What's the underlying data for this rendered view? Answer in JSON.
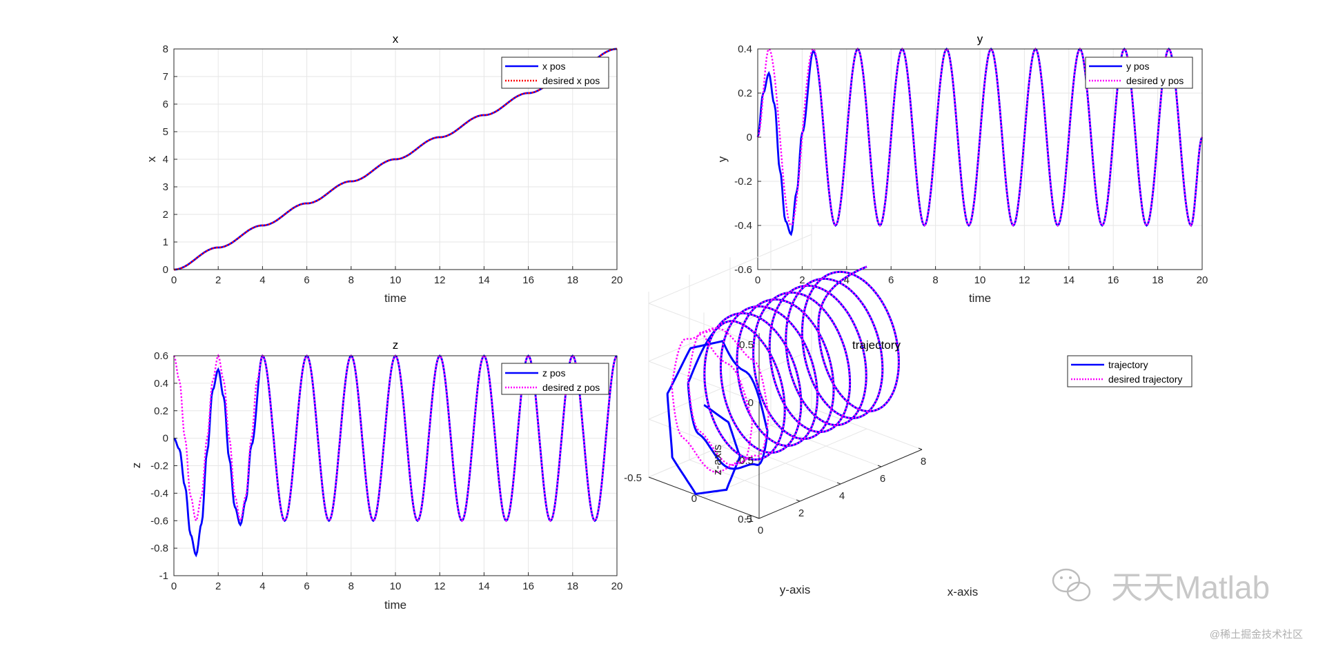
{
  "colors": {
    "actual": "#0000ff",
    "desired_magenta": "#ff00ff",
    "desired_red": "#ff0000",
    "grid": "#e6e6e6",
    "axis": "#262626"
  },
  "watermark": {
    "brand": "天天Matlab",
    "credit": "@稀土掘金技术社区",
    "icon": "wechat-icon"
  },
  "chart_data": [
    {
      "type": "line",
      "title": "x",
      "xlabel": "time",
      "ylabel": "x",
      "xlim": [
        0,
        20
      ],
      "ylim": [
        0,
        8
      ],
      "xticks": [
        "0",
        "2",
        "4",
        "6",
        "8",
        "10",
        "12",
        "14",
        "16",
        "18",
        "20"
      ],
      "yticks": [
        "0",
        "1",
        "2",
        "3",
        "4",
        "5",
        "6",
        "7",
        "8"
      ],
      "grid": true,
      "legend_location": "top-right",
      "series": [
        {
          "name": "x pos",
          "style": "solid",
          "color": "#0000ff",
          "x": [
            0,
            2,
            4,
            6,
            8,
            10,
            12,
            14,
            16,
            18,
            20
          ],
          "y": [
            0,
            0.8,
            1.6,
            2.4,
            3.2,
            4.0,
            4.8,
            5.6,
            6.4,
            7.2,
            8.0
          ]
        },
        {
          "name": "desired x pos",
          "style": "dotted",
          "color": "#ff0000",
          "x": [
            0,
            2,
            4,
            6,
            8,
            10,
            12,
            14,
            16,
            18,
            20
          ],
          "y": [
            0,
            0.8,
            1.6,
            2.4,
            3.2,
            4.0,
            4.8,
            5.6,
            6.4,
            7.2,
            8.0
          ]
        }
      ]
    },
    {
      "type": "line",
      "title": "y",
      "xlabel": "time",
      "ylabel": "y",
      "xlim": [
        0,
        20
      ],
      "ylim": [
        -0.6,
        0.4
      ],
      "xticks": [
        "0",
        "2",
        "4",
        "6",
        "8",
        "10",
        "12",
        "14",
        "16",
        "18",
        "20"
      ],
      "yticks": [
        "-0.6",
        "-0.4",
        "-0.2",
        "0",
        "0.2",
        "0.4"
      ],
      "grid": true,
      "legend_location": "top-right",
      "series": [
        {
          "name": "y pos",
          "style": "solid",
          "color": "#0000ff",
          "x": [
            0,
            0.25,
            0.5,
            0.75,
            1.0,
            1.25,
            1.5,
            1.75,
            2.0,
            2.5,
            3.5,
            4.5,
            5.5,
            6.5,
            7.5,
            8.5,
            9.5,
            10.5,
            11.5,
            12.5,
            13.5,
            14.5,
            15.5,
            16.5,
            17.5,
            18.5,
            19.5,
            20
          ],
          "y": [
            0,
            0.2,
            0.29,
            0.15,
            -0.15,
            -0.38,
            -0.44,
            -0.25,
            0.02,
            0.39,
            -0.4,
            0.4,
            -0.4,
            0.4,
            -0.4,
            0.4,
            -0.4,
            0.4,
            -0.4,
            0.4,
            -0.4,
            0.4,
            -0.4,
            0.4,
            -0.4,
            0.4,
            -0.4,
            0
          ]
        },
        {
          "name": "desired y pos",
          "style": "dotted",
          "color": "#ff00ff",
          "x": [
            0,
            0.5,
            1.5,
            2.5,
            3.5,
            4.5,
            5.5,
            6.5,
            7.5,
            8.5,
            9.5,
            10.5,
            11.5,
            12.5,
            13.5,
            14.5,
            15.5,
            16.5,
            17.5,
            18.5,
            19.5,
            20
          ],
          "y": [
            0,
            0.4,
            -0.4,
            0.4,
            -0.4,
            0.4,
            -0.4,
            0.4,
            -0.4,
            0.4,
            -0.4,
            0.4,
            -0.4,
            0.4,
            -0.4,
            0.4,
            -0.4,
            0.4,
            -0.4,
            0.4,
            -0.4,
            0
          ]
        }
      ]
    },
    {
      "type": "line",
      "title": "z",
      "xlabel": "time",
      "ylabel": "z",
      "xlim": [
        0,
        20
      ],
      "ylim": [
        -1,
        0.6
      ],
      "xticks": [
        "0",
        "2",
        "4",
        "6",
        "8",
        "10",
        "12",
        "14",
        "16",
        "18",
        "20"
      ],
      "yticks": [
        "-1",
        "-0.8",
        "-0.6",
        "-0.4",
        "-0.2",
        "0",
        "0.2",
        "0.4",
        "0.6"
      ],
      "grid": true,
      "legend_location": "top-right",
      "series": [
        {
          "name": "z pos",
          "style": "solid",
          "color": "#0000ff",
          "x": [
            0,
            0.25,
            0.5,
            0.75,
            1.0,
            1.25,
            1.5,
            1.75,
            2.0,
            2.25,
            2.5,
            2.75,
            3.0,
            3.25,
            3.5,
            4.0,
            5.0,
            6.0,
            7.0,
            8.0,
            9.0,
            10.0,
            11.0,
            12.0,
            13.0,
            14.0,
            15.0,
            16.0,
            17.0,
            18.0,
            19.0,
            20.0
          ],
          "y": [
            0,
            -0.08,
            -0.35,
            -0.7,
            -0.85,
            -0.62,
            -0.1,
            0.35,
            0.5,
            0.3,
            -0.15,
            -0.5,
            -0.63,
            -0.45,
            -0.05,
            0.6,
            -0.6,
            0.6,
            -0.6,
            0.6,
            -0.6,
            0.6,
            -0.6,
            0.6,
            -0.6,
            0.6,
            -0.6,
            0.6,
            -0.6,
            0.6,
            -0.6,
            0.6
          ]
        },
        {
          "name": "desired z pos",
          "style": "dotted",
          "color": "#ff00ff",
          "x": [
            0,
            0.25,
            0.5,
            0.75,
            1.0,
            1.25,
            1.5,
            1.75,
            2.0,
            2.25,
            2.5,
            2.75,
            3.0,
            3.25,
            3.5,
            3.75,
            4.0,
            5.0,
            6.0,
            7.0,
            8.0,
            9.0,
            10.0,
            11.0,
            12.0,
            13.0,
            14.0,
            15.0,
            16.0,
            17.0,
            18.0,
            19.0,
            20.0
          ],
          "y": [
            0.6,
            0.42,
            0.0,
            -0.42,
            -0.6,
            -0.42,
            0.0,
            0.42,
            0.6,
            0.42,
            0.0,
            -0.42,
            -0.6,
            -0.42,
            0.0,
            0.42,
            0.6,
            -0.6,
            0.6,
            -0.6,
            0.6,
            -0.6,
            0.6,
            -0.6,
            0.6,
            -0.6,
            0.6,
            -0.6,
            0.6,
            -0.6,
            0.6,
            -0.6,
            0.6
          ]
        }
      ]
    },
    {
      "type": "line3d",
      "title": "trajectory",
      "xlabel": "x-axis",
      "ylabel": "y-axis",
      "zlabel": "z-axis",
      "xlim": [
        0,
        8
      ],
      "ylim": [
        -0.5,
        0.5
      ],
      "zlim": [
        -1,
        0.6
      ],
      "xticks": [
        "0",
        "2",
        "4",
        "6",
        "8"
      ],
      "yticks": [
        "-0.5",
        "0",
        "0.5"
      ],
      "zticks": [
        "-1",
        "-0.5",
        "0",
        "0.5"
      ],
      "grid": true,
      "legend_location": "top-right",
      "helix": {
        "x_rate_per_time": 0.4,
        "t_range": [
          0,
          20
        ],
        "period": 2,
        "radius": 0.4,
        "z_offset": -0.2
      },
      "series": [
        {
          "name": "trajectory",
          "style": "solid",
          "color": "#0000ff",
          "x": [
            0,
            0.8,
            1.6,
            2.4,
            3.2,
            4.0,
            4.8,
            5.6,
            6.4,
            7.2,
            8.0
          ],
          "y": [
            0,
            0,
            0,
            0,
            0,
            0,
            0,
            0,
            0,
            0,
            0
          ],
          "z": [
            0,
            0.5,
            0.6,
            0.6,
            0.6,
            0.6,
            0.6,
            0.6,
            0.6,
            0.6,
            0.6
          ]
        },
        {
          "name": "desired trajectory",
          "style": "dotted",
          "color": "#ff00ff",
          "x": [
            0,
            0.8,
            1.6,
            2.4,
            3.2,
            4.0,
            4.8,
            5.6,
            6.4,
            7.2,
            8.0
          ],
          "y": [
            0,
            0,
            0,
            0,
            0,
            0,
            0,
            0,
            0,
            0,
            0
          ],
          "z": [
            0.6,
            0.6,
            0.6,
            0.6,
            0.6,
            0.6,
            0.6,
            0.6,
            0.6,
            0.6,
            0.6
          ]
        }
      ]
    }
  ]
}
